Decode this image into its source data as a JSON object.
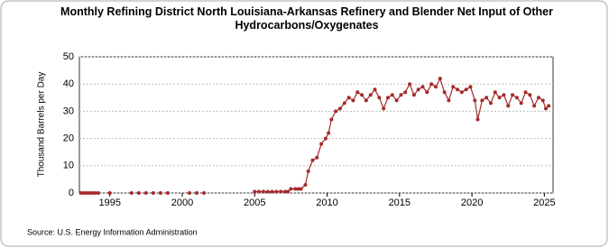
{
  "chart_data": {
    "type": "line",
    "title": "Monthly Refining District North Louisiana-Arkansas Refinery and Blender Net Input of Other Hydrocarbons/Oxygenates",
    "y_label": "Thousand Barrels per Day",
    "source": "Source: U.S. Energy Information Administration",
    "x": [
      1993.0,
      1993.2,
      1993.4,
      1993.6,
      1993.8,
      1994.0,
      1994.2,
      1994.6,
      1995.0,
      1995.5,
      1996.5,
      1996.8,
      1997.0,
      1997.3,
      1997.5,
      1997.8,
      1998.0,
      1998.3,
      1998.5,
      1998.8,
      1999.0,
      1999.5,
      2000.5,
      2000.8,
      2001.0,
      2001.3,
      2001.5,
      2003.0,
      2005.0,
      2005.3,
      2005.6,
      2005.9,
      2006.2,
      2006.5,
      2006.8,
      2007.1,
      2007.3,
      2007.5,
      2007.8,
      2008.0,
      2008.2,
      2008.5,
      2008.7,
      2009.0,
      2009.3,
      2009.6,
      2009.9,
      2010.1,
      2010.3,
      2010.6,
      2010.9,
      2011.2,
      2011.5,
      2011.8,
      2012.1,
      2012.4,
      2012.7,
      2013.0,
      2013.3,
      2013.6,
      2013.9,
      2014.2,
      2014.5,
      2014.8,
      2015.1,
      2015.4,
      2015.7,
      2016.0,
      2016.3,
      2016.6,
      2016.9,
      2017.2,
      2017.5,
      2017.8,
      2018.1,
      2018.4,
      2018.7,
      2019.0,
      2019.3,
      2019.6,
      2019.9,
      2020.2,
      2020.4,
      2020.7,
      2021.0,
      2021.3,
      2021.6,
      2021.9,
      2022.2,
      2022.5,
      2022.8,
      2023.1,
      2023.4,
      2023.7,
      2024.0,
      2024.3,
      2024.6,
      2024.9,
      2025.1,
      2025.3
    ],
    "series": [
      {
        "name": "North Louisiana-Arkansas",
        "color": "#a52a2a",
        "values": [
          0,
          0,
          0,
          0,
          0,
          0,
          0,
          null,
          0,
          null,
          0,
          null,
          0,
          null,
          0,
          null,
          0,
          null,
          0,
          null,
          0,
          null,
          0,
          null,
          0,
          null,
          0,
          null,
          0.5,
          0.5,
          0.5,
          0.5,
          0.5,
          0.5,
          0.5,
          0.5,
          0.5,
          1.5,
          1.5,
          1.5,
          1.5,
          3,
          8,
          12,
          13,
          18,
          20,
          22,
          27,
          30,
          31,
          33,
          35,
          34,
          37,
          36,
          34,
          36,
          38,
          35,
          31,
          35,
          36,
          34,
          36,
          37,
          40,
          36,
          38,
          39,
          37,
          40,
          39,
          42,
          37,
          34,
          39,
          38,
          37,
          38,
          39,
          34,
          27,
          34,
          35,
          33,
          37,
          35,
          36,
          32,
          36,
          35,
          33,
          37,
          36,
          32,
          35,
          34,
          31,
          32
        ]
      }
    ],
    "xlim": [
      1992.9,
      2025.6
    ],
    "xticks": [
      1995,
      2000,
      2005,
      2010,
      2015,
      2020,
      2025
    ],
    "ylim": [
      0,
      50
    ],
    "yticks": [
      0,
      10,
      20,
      30,
      40,
      50
    ],
    "grid": true
  }
}
